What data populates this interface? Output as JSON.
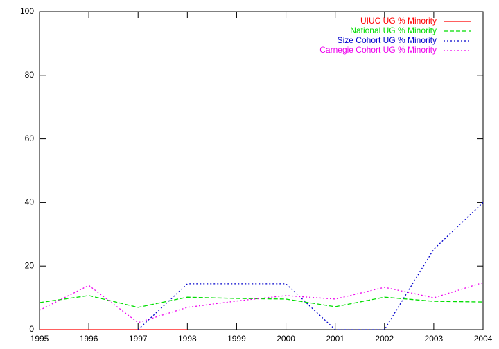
{
  "chart_data": {
    "type": "line",
    "x": [
      1995,
      1996,
      1997,
      1998,
      1999,
      2000,
      2001,
      2002,
      2003,
      2004
    ],
    "series": [
      {
        "name": "UIUC UG % Minority",
        "color": "#ff0000",
        "style": "solid",
        "values": [
          0,
          0,
          0,
          0,
          null,
          null,
          null,
          null,
          null,
          null
        ]
      },
      {
        "name": "National UG % Minority",
        "color": "#00dd00",
        "style": "dashed",
        "values": [
          8.5,
          10.7,
          7,
          10.2,
          9.8,
          9.6,
          7.2,
          10.2,
          8.9,
          8.7
        ]
      },
      {
        "name": "Size Cohort UG % Minority",
        "color": "#0000cc",
        "style": "dotted",
        "values": [
          null,
          null,
          0,
          14.4,
          14.4,
          14.4,
          0,
          0,
          25.3,
          40
        ]
      },
      {
        "name": "Carnegie Cohort UG % Minority",
        "color": "#ee00ee",
        "style": "dotted",
        "values": [
          6.1,
          13.9,
          2.2,
          7,
          9,
          10.7,
          9.6,
          13.3,
          10,
          14.8
        ]
      }
    ],
    "xlim": [
      1995,
      2004
    ],
    "xticks": [
      1995,
      1996,
      1997,
      1998,
      1999,
      2000,
      2001,
      2002,
      2003,
      2004
    ],
    "ylim": [
      0,
      100
    ],
    "yticks": [
      0,
      20,
      40,
      60,
      80,
      100
    ],
    "legend": "top-right"
  }
}
